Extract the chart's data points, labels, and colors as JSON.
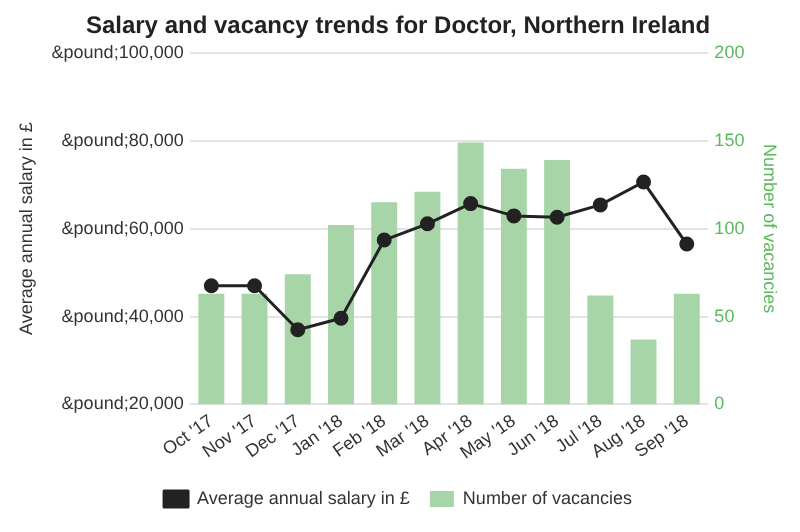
{
  "chart_data": {
    "type": "bar",
    "title": "Salary and vacancy trends for Doctor, Northern Ireland",
    "ylabel": "Average annual salary in £",
    "y2label": "Number of vacancies",
    "categories": [
      "Oct '17",
      "Nov '17",
      "Dec '17",
      "Jan '18",
      "Feb '18",
      "Mar '18",
      "Apr '18",
      "May '18",
      "Jun '18",
      "Jul '18",
      "Aug '18",
      "Sep '18"
    ],
    "series": [
      {
        "name": "Average annual salary in £",
        "type": "line",
        "color": "#222222",
        "values": [
          47000,
          47000,
          37000,
          39600,
          57400,
          61100,
          65700,
          62900,
          62600,
          65400,
          70600,
          56500
        ]
      },
      {
        "name": "Number of vacancies",
        "axis": "y2",
        "color": "#a8d5a8",
        "values": [
          63,
          63,
          74,
          102,
          115,
          121,
          149,
          134,
          139,
          62,
          37,
          63
        ]
      }
    ],
    "ylim": [
      20000,
      100000
    ],
    "yticks": [
      {
        "value": 20000,
        "label": "&pound;20,000"
      },
      {
        "value": 40000,
        "label": "&pound;40,000"
      },
      {
        "value": 60000,
        "label": "&pound;60,000"
      },
      {
        "value": 80000,
        "label": "&pound;80,000"
      },
      {
        "value": 100000,
        "label": "&pound;100,000"
      }
    ],
    "y2lim": [
      0,
      200
    ],
    "y2ticks": [
      0,
      50,
      100,
      150,
      200
    ],
    "grid": "y",
    "legend": "bottom",
    "marker": "circle"
  }
}
